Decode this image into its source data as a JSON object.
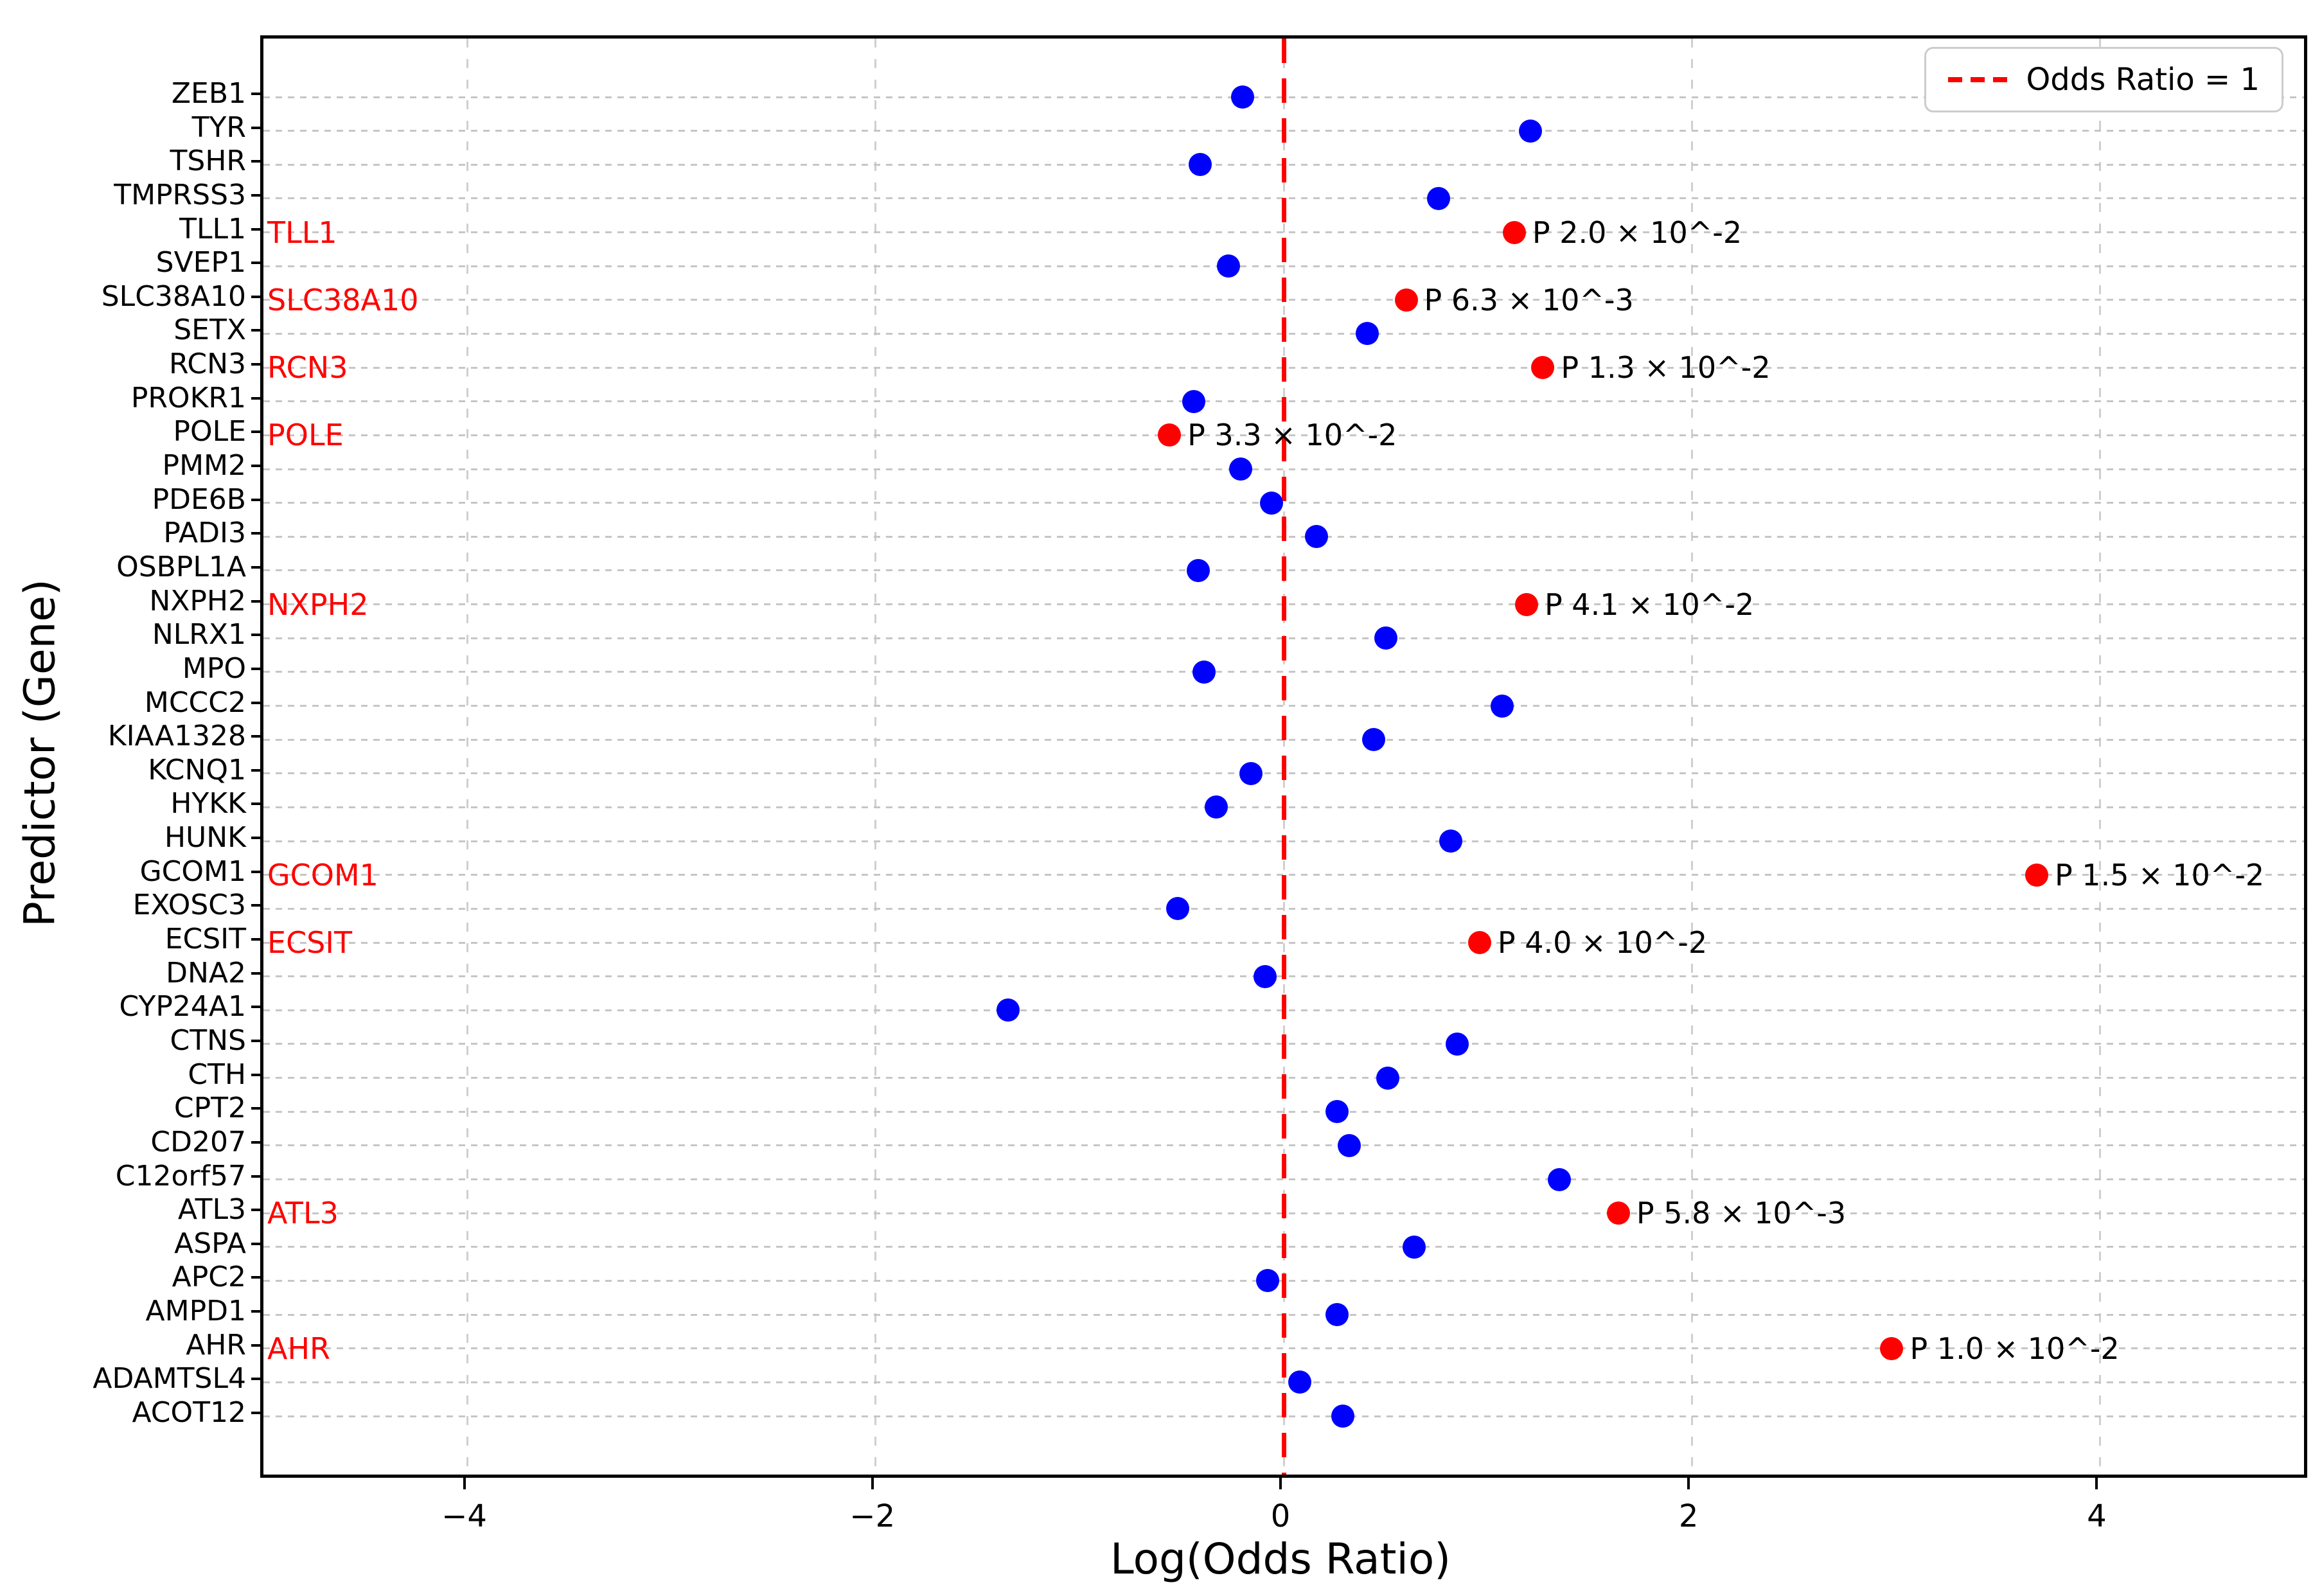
{
  "chart_data": {
    "type": "scatter",
    "orientation": "horizontal-categorical",
    "title": "",
    "xlabel": "Log(Odds Ratio)",
    "ylabel": "Predictor (Gene)",
    "xlim": [
      -5,
      5
    ],
    "x_ticks": [
      {
        "value": -4,
        "label": "−4"
      },
      {
        "value": -2,
        "label": "−2"
      },
      {
        "value": 0,
        "label": "0"
      },
      {
        "value": 2,
        "label": "2"
      },
      {
        "value": 4,
        "label": "4"
      }
    ],
    "grid": {
      "horizontal": "dotted",
      "vertical": "dashed"
    },
    "reference_line": {
      "x": 0,
      "style": "dashed",
      "color": "#ff0000"
    },
    "legend": {
      "position": "upper right",
      "entries": [
        {
          "label": "Odds Ratio = 1",
          "style": "red-dashed-line"
        }
      ]
    },
    "category_order": "top-to-bottom",
    "genes": [
      {
        "name": "ZEB1",
        "log_odds_ratio": -0.2,
        "significant": false
      },
      {
        "name": "TYR",
        "log_odds_ratio": 1.21,
        "significant": false
      },
      {
        "name": "TSHR",
        "log_odds_ratio": -0.41,
        "significant": false
      },
      {
        "name": "TMPRSS3",
        "log_odds_ratio": 0.76,
        "significant": false
      },
      {
        "name": "TLL1",
        "log_odds_ratio": 1.13,
        "significant": true,
        "p_label": "P 2.0 × 10^-2"
      },
      {
        "name": "SVEP1",
        "log_odds_ratio": -0.27,
        "significant": false
      },
      {
        "name": "SLC38A10",
        "log_odds_ratio": 0.6,
        "significant": true,
        "p_label": "P 6.3 × 10^-3"
      },
      {
        "name": "SETX",
        "log_odds_ratio": 0.41,
        "significant": false
      },
      {
        "name": "RCN3",
        "log_odds_ratio": 1.27,
        "significant": true,
        "p_label": "P 1.3 × 10^-2"
      },
      {
        "name": "PROKR1",
        "log_odds_ratio": -0.44,
        "significant": false
      },
      {
        "name": "POLE",
        "log_odds_ratio": -0.56,
        "significant": true,
        "p_label": "P 3.3 × 10^-2"
      },
      {
        "name": "PMM2",
        "log_odds_ratio": -0.21,
        "significant": false
      },
      {
        "name": "PDE6B",
        "log_odds_ratio": -0.06,
        "significant": false
      },
      {
        "name": "PADI3",
        "log_odds_ratio": 0.16,
        "significant": false
      },
      {
        "name": "OSBPL1A",
        "log_odds_ratio": -0.42,
        "significant": false
      },
      {
        "name": "NXPH2",
        "log_odds_ratio": 1.19,
        "significant": true,
        "p_label": "P 4.1 × 10^-2"
      },
      {
        "name": "NLRX1",
        "log_odds_ratio": 0.5,
        "significant": false
      },
      {
        "name": "MPO",
        "log_odds_ratio": -0.39,
        "significant": false
      },
      {
        "name": "MCCC2",
        "log_odds_ratio": 1.07,
        "significant": false
      },
      {
        "name": "KIAA1328",
        "log_odds_ratio": 0.44,
        "significant": false
      },
      {
        "name": "KCNQ1",
        "log_odds_ratio": -0.16,
        "significant": false
      },
      {
        "name": "HYKK",
        "log_odds_ratio": -0.33,
        "significant": false
      },
      {
        "name": "HUNK",
        "log_odds_ratio": 0.82,
        "significant": false
      },
      {
        "name": "GCOM1",
        "log_odds_ratio": 3.69,
        "significant": true,
        "p_label": "P 1.5 × 10^-2"
      },
      {
        "name": "EXOSC3",
        "log_odds_ratio": -0.52,
        "significant": false
      },
      {
        "name": "ECSIT",
        "log_odds_ratio": 0.96,
        "significant": true,
        "p_label": "P 4.0 × 10^-2"
      },
      {
        "name": "DNA2",
        "log_odds_ratio": -0.09,
        "significant": false
      },
      {
        "name": "CYP24A1",
        "log_odds_ratio": -1.35,
        "significant": false
      },
      {
        "name": "CTNS",
        "log_odds_ratio": 0.85,
        "significant": false
      },
      {
        "name": "CTH",
        "log_odds_ratio": 0.51,
        "significant": false
      },
      {
        "name": "CPT2",
        "log_odds_ratio": 0.26,
        "significant": false
      },
      {
        "name": "CD207",
        "log_odds_ratio": 0.32,
        "significant": false
      },
      {
        "name": "C12orf57",
        "log_odds_ratio": 1.35,
        "significant": false
      },
      {
        "name": "ATL3",
        "log_odds_ratio": 1.64,
        "significant": true,
        "p_label": "P 5.8 × 10^-3"
      },
      {
        "name": "ASPA",
        "log_odds_ratio": 0.64,
        "significant": false
      },
      {
        "name": "APC2",
        "log_odds_ratio": -0.08,
        "significant": false
      },
      {
        "name": "AMPD1",
        "log_odds_ratio": 0.26,
        "significant": false
      },
      {
        "name": "AHR",
        "log_odds_ratio": 2.98,
        "significant": true,
        "p_label": "P 1.0 × 10^-2"
      },
      {
        "name": "ADAMTSL4",
        "log_odds_ratio": 0.08,
        "significant": false
      },
      {
        "name": "ACOT12",
        "log_odds_ratio": 0.29,
        "significant": false
      }
    ],
    "colors": {
      "point_default": "#0000ff",
      "point_significant": "#ff0000",
      "significant_gene_label": "#ff0000",
      "reference_line": "#ff0000",
      "grid": "#c6c6c6",
      "text": "#000000"
    }
  }
}
